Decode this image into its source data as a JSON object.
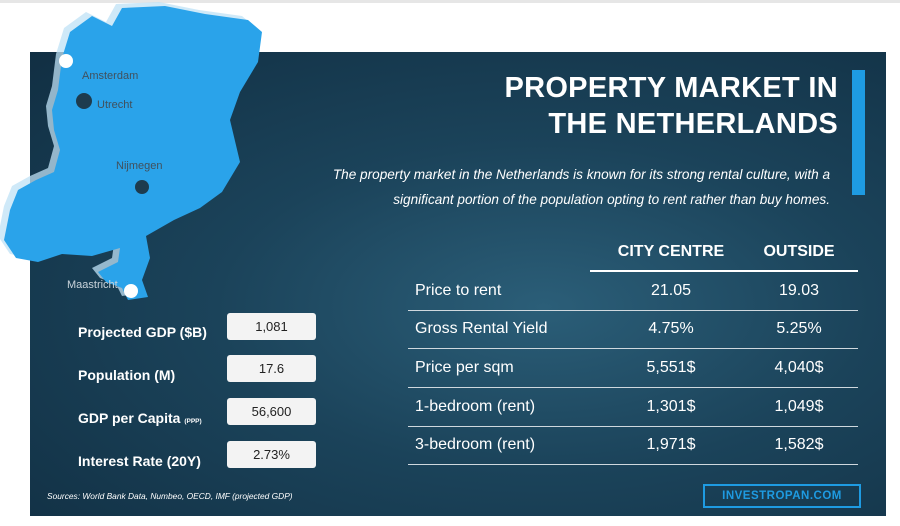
{
  "title_line1": "PROPERTY MARKET IN",
  "title_line2": "THE NETHERLANDS",
  "intro_line1": "The property market in the Netherlands is known for its strong rental culture, with a",
  "intro_line2": "significant portion of the population opting to rent rather than buy homes.",
  "map": {
    "country": "Netherlands",
    "cities": [
      "Amsterdam",
      "Utrecht",
      "Nijmegen",
      "Maastricht"
    ]
  },
  "table": {
    "columns": [
      "CITY CENTRE",
      "OUTSIDE"
    ],
    "rows": [
      {
        "label": "Price to rent",
        "city_centre": "21.05",
        "outside": "19.03"
      },
      {
        "label": "Gross Rental Yield",
        "city_centre": "4.75%",
        "outside": "5.25%"
      },
      {
        "label": "Price per sqm",
        "city_centre": "5,551$",
        "outside": "4,040$"
      },
      {
        "label": "1-bedroom (rent)",
        "city_centre": "1,301$",
        "outside": "1,049$"
      },
      {
        "label": "3-bedroom (rent)",
        "city_centre": "1,971$",
        "outside": "1,582$"
      }
    ]
  },
  "stats": [
    {
      "label": "Projected GDP ($B)",
      "suffix": "",
      "value": "1,081"
    },
    {
      "label": "Population (M)",
      "suffix": "",
      "value": "17.6"
    },
    {
      "label": "GDP per Capita",
      "suffix": "(PPP)",
      "value": "56,600"
    },
    {
      "label": "Interest Rate (20Y)",
      "suffix": "",
      "value": "2.73%"
    }
  ],
  "sources": "Sources:  World Bank Data, Numbeo, OECD, IMF (projected GDP)",
  "brand": "INVESTROPAN.COM",
  "colors": {
    "accent": "#1e9be2",
    "map": "#2aa3ea",
    "background": "#1b435a"
  }
}
